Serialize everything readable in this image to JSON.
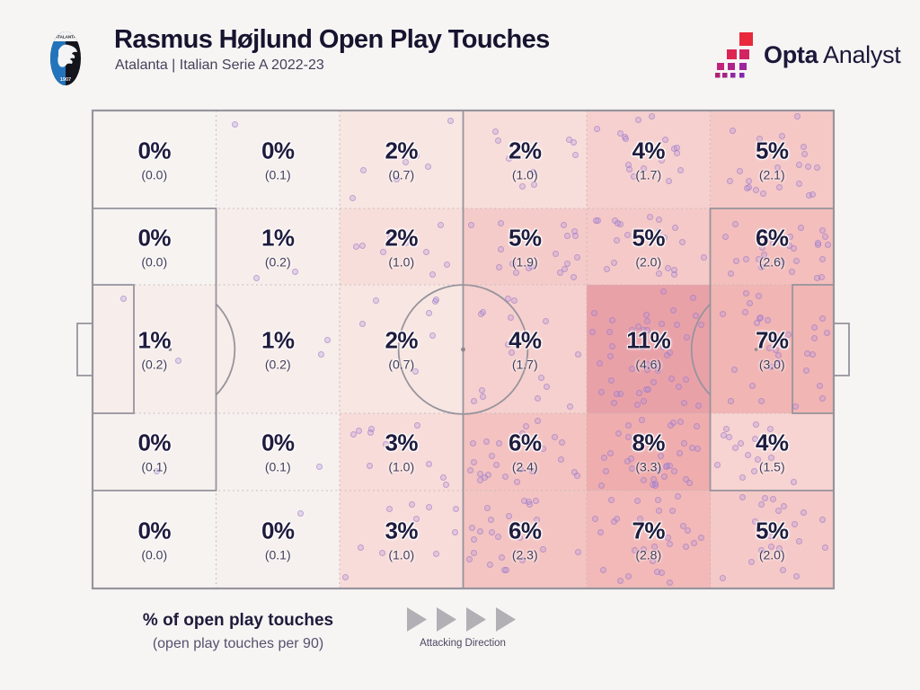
{
  "header": {
    "title": "Rasmus Højlund Open Play Touches",
    "subtitle": "Atalanta | Italian Serie A 2022-23",
    "crest": "atalanta-club-crest",
    "brand": {
      "name_bold": "Opta",
      "name_regular": "Analyst",
      "text_color": "#1b1839",
      "mark_colors": [
        "#e9293c",
        "#de2452",
        "#d22363",
        "#c1237b",
        "#af248c",
        "#9e259b",
        "#b12373",
        "#a32489",
        "#9125a2",
        "#8226b1"
      ]
    }
  },
  "legend": {
    "primary": "% of open play touches",
    "secondary": "(open play touches per 90)",
    "attacking_direction": "Attacking Direction",
    "arrow_color": "#b2afb5"
  },
  "pitch": {
    "line_color": "#97949d",
    "grid_line_color": "#c3bbbc",
    "dot_fill": "rgba(172,142,215,0.28)",
    "dot_ring": "rgba(148,110,198,0.48)"
  },
  "zones": [
    {
      "row": 0,
      "col": 0,
      "pct": "0%",
      "per90": "(0.0)",
      "color": "#f6f3f1",
      "dots": 0
    },
    {
      "row": 0,
      "col": 1,
      "pct": "0%",
      "per90": "(0.1)",
      "color": "#f6f1ef",
      "dots": 1
    },
    {
      "row": 0,
      "col": 2,
      "pct": "2%",
      "per90": "(0.7)",
      "color": "#f8e6e2",
      "dots": 7
    },
    {
      "row": 0,
      "col": 3,
      "pct": "2%",
      "per90": "(1.0)",
      "color": "#f8deda",
      "dots": 10
    },
    {
      "row": 0,
      "col": 4,
      "pct": "4%",
      "per90": "(1.7)",
      "color": "#f6d0ce",
      "dots": 17
    },
    {
      "row": 0,
      "col": 5,
      "pct": "5%",
      "per90": "(2.1)",
      "color": "#f5c8c6",
      "dots": 21
    },
    {
      "row": 1,
      "col": 0,
      "pct": "0%",
      "per90": "(0.0)",
      "color": "#f6f3f1",
      "dots": 0
    },
    {
      "row": 1,
      "col": 1,
      "pct": "1%",
      "per90": "(0.2)",
      "color": "#f7edea",
      "dots": 2
    },
    {
      "row": 1,
      "col": 2,
      "pct": "2%",
      "per90": "(1.0)",
      "color": "#f8deda",
      "dots": 10
    },
    {
      "row": 1,
      "col": 3,
      "pct": "5%",
      "per90": "(1.9)",
      "color": "#f5cbc9",
      "dots": 19
    },
    {
      "row": 1,
      "col": 4,
      "pct": "5%",
      "per90": "(2.0)",
      "color": "#f5c9c7",
      "dots": 20
    },
    {
      "row": 1,
      "col": 5,
      "pct": "6%",
      "per90": "(2.6)",
      "color": "#f3bebc",
      "dots": 26
    },
    {
      "row": 2,
      "col": 0,
      "pct": "1%",
      "per90": "(0.2)",
      "color": "#f7edea",
      "dots": 2
    },
    {
      "row": 2,
      "col": 1,
      "pct": "1%",
      "per90": "(0.2)",
      "color": "#f7edea",
      "dots": 2
    },
    {
      "row": 2,
      "col": 2,
      "pct": "2%",
      "per90": "(0.7)",
      "color": "#f8e6e2",
      "dots": 7
    },
    {
      "row": 2,
      "col": 3,
      "pct": "4%",
      "per90": "(1.7)",
      "color": "#f6d0ce",
      "dots": 17
    },
    {
      "row": 2,
      "col": 4,
      "pct": "11%",
      "per90": "(4.6)",
      "color": "#e9a1a8",
      "dots": 46
    },
    {
      "row": 2,
      "col": 5,
      "pct": "7%",
      "per90": "(3.0)",
      "color": "#f1b5b4",
      "dots": 30
    },
    {
      "row": 3,
      "col": 0,
      "pct": "0%",
      "per90": "(0.1)",
      "color": "#f6f1ef",
      "dots": 1
    },
    {
      "row": 3,
      "col": 1,
      "pct": "0%",
      "per90": "(0.1)",
      "color": "#f6f1ef",
      "dots": 1
    },
    {
      "row": 3,
      "col": 2,
      "pct": "3%",
      "per90": "(1.0)",
      "color": "#f8dcd9",
      "dots": 10
    },
    {
      "row": 3,
      "col": 3,
      "pct": "6%",
      "per90": "(2.4)",
      "color": "#f4c2c0",
      "dots": 24
    },
    {
      "row": 3,
      "col": 4,
      "pct": "8%",
      "per90": "(3.3)",
      "color": "#efadae",
      "dots": 33
    },
    {
      "row": 3,
      "col": 5,
      "pct": "4%",
      "per90": "(1.5)",
      "color": "#f7d3d1",
      "dots": 15
    },
    {
      "row": 4,
      "col": 0,
      "pct": "0%",
      "per90": "(0.0)",
      "color": "#f6f3f1",
      "dots": 0
    },
    {
      "row": 4,
      "col": 1,
      "pct": "0%",
      "per90": "(0.1)",
      "color": "#f6f1ef",
      "dots": 1
    },
    {
      "row": 4,
      "col": 2,
      "pct": "3%",
      "per90": "(1.0)",
      "color": "#f8dcd9",
      "dots": 10
    },
    {
      "row": 4,
      "col": 3,
      "pct": "6%",
      "per90": "(2.3)",
      "color": "#f4c4c2",
      "dots": 23
    },
    {
      "row": 4,
      "col": 4,
      "pct": "7%",
      "per90": "(2.8)",
      "color": "#f2b9b8",
      "dots": 28
    },
    {
      "row": 4,
      "col": 5,
      "pct": "5%",
      "per90": "(2.0)",
      "color": "#f5c9c7",
      "dots": 20
    }
  ],
  "chart_data": {
    "type": "heatmap",
    "title": "Rasmus Højlund Open Play Touches",
    "subtitle": "Atalanta | Italian Serie A 2022-23",
    "description": "Football pitch divided into a 6-column (own goal, left, to attacking goal, right) by 5-row grid; each zone shows % of open play touches and (open play touches per 90); individual touches overlaid as purple dots",
    "columns": [
      "own-box",
      "defensive",
      "mid-defensive",
      "mid-attacking",
      "attacking",
      "final"
    ],
    "rows": [
      "wide-top",
      "halfspace-top",
      "central",
      "halfspace-bottom",
      "wide-bottom"
    ],
    "pct_of_open_play_touches": [
      [
        0,
        0,
        2,
        2,
        4,
        5
      ],
      [
        0,
        1,
        2,
        5,
        5,
        6
      ],
      [
        1,
        1,
        2,
        4,
        11,
        7
      ],
      [
        0,
        0,
        3,
        6,
        8,
        4
      ],
      [
        0,
        0,
        3,
        6,
        7,
        5
      ]
    ],
    "open_play_touches_per_90": [
      [
        0.0,
        0.1,
        0.7,
        1.0,
        1.7,
        2.1
      ],
      [
        0.0,
        0.2,
        1.0,
        1.9,
        2.0,
        2.6
      ],
      [
        0.2,
        0.2,
        0.7,
        1.7,
        4.6,
        3.0
      ],
      [
        0.1,
        0.1,
        1.0,
        2.4,
        3.3,
        1.5
      ],
      [
        0.0,
        0.1,
        1.0,
        2.3,
        2.8,
        2.0
      ]
    ],
    "max_zone": {
      "pct": 11,
      "per90": 4.6,
      "row": "central",
      "col": "attacking"
    },
    "attacking_direction": "left to right",
    "legend": [
      "% of open play touches",
      "(open play touches per 90)"
    ]
  }
}
